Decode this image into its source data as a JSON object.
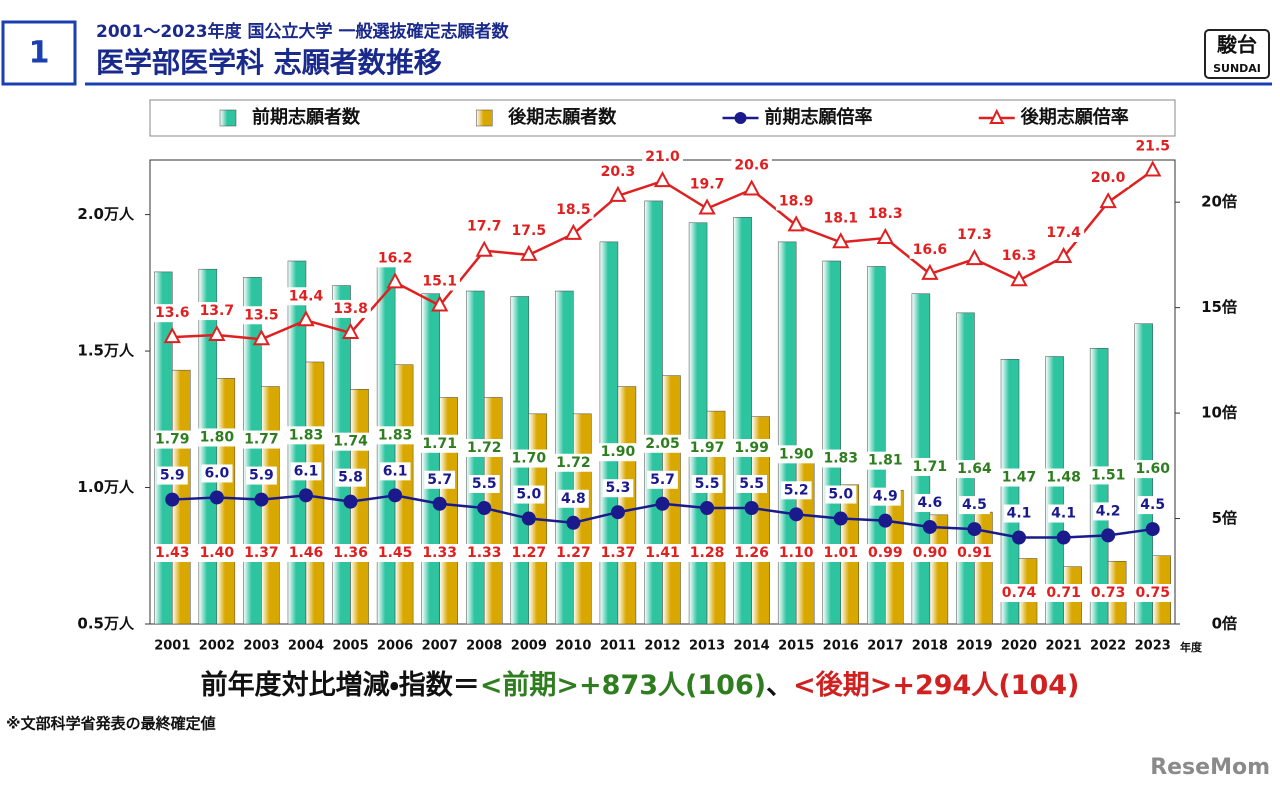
{
  "header": {
    "number": "1",
    "subtitle": "2001～2023年度 国公立大学 一般選抜確定志願者数",
    "title": "医学部医学科 志願者数推移"
  },
  "logo": {
    "kanji": "駿台",
    "latin": "SUNDAI"
  },
  "summary": {
    "lead": "前年度対比増減・指数＝",
    "front": "<前期>+873人(106)",
    "sep": "、",
    "back": "<後期>+294人(104)"
  },
  "note": "※文部科学省発表の最終確定値",
  "watermark": "ReseMom",
  "chart_data": {
    "type": "bar",
    "categories": [
      "2001",
      "2002",
      "2003",
      "2004",
      "2005",
      "2006",
      "2007",
      "2008",
      "2009",
      "2010",
      "2011",
      "2012",
      "2013",
      "2014",
      "2015",
      "2016",
      "2017",
      "2018",
      "2019",
      "2020",
      "2021",
      "2022",
      "2023"
    ],
    "x_unit": "年度",
    "ylim": [
      0.5,
      2.2
    ],
    "yticks": [
      {
        "value": 0.5,
        "label": "0.5万人"
      },
      {
        "value": 1.0,
        "label": "1.0万人"
      },
      {
        "value": 1.5,
        "label": "1.5万人"
      },
      {
        "value": 2.0,
        "label": "2.0万人"
      }
    ],
    "y2lim": [
      0,
      22
    ],
    "y2ticks": [
      {
        "value": 0,
        "label": "0倍"
      },
      {
        "value": 5,
        "label": "5倍"
      },
      {
        "value": 10,
        "label": "10倍"
      },
      {
        "value": 15,
        "label": "15倍"
      },
      {
        "value": 20,
        "label": "20倍"
      }
    ],
    "series": [
      {
        "name": "前期志願者数",
        "type": "bar",
        "color": "#2ec4a0",
        "label_color": "#2e7d1e",
        "values": [
          1.79,
          1.8,
          1.77,
          1.83,
          1.74,
          1.83,
          1.71,
          1.72,
          1.7,
          1.72,
          1.9,
          2.05,
          1.97,
          1.99,
          1.9,
          1.83,
          1.81,
          1.71,
          1.64,
          1.47,
          1.48,
          1.51,
          1.6
        ],
        "value_labels": [
          "1.79",
          "1.80",
          "1.77",
          "1.83",
          "1.74",
          "1.83",
          "1.71",
          "1.72",
          "1.70",
          "1.72",
          "1.90",
          "2.05",
          "1.97",
          "1.99",
          "1.90",
          "1.83",
          "1.81",
          "1.71",
          "1.64",
          "1.47",
          "1.48",
          "1.51",
          "1.60"
        ]
      },
      {
        "name": "後期志願者数",
        "type": "bar",
        "color": "#d9a800",
        "label_color": "#e02020",
        "values": [
          1.43,
          1.4,
          1.37,
          1.46,
          1.36,
          1.45,
          1.33,
          1.33,
          1.27,
          1.27,
          1.37,
          1.41,
          1.28,
          1.26,
          1.1,
          1.01,
          0.99,
          0.9,
          0.91,
          0.74,
          0.71,
          0.73,
          0.75
        ],
        "value_labels": [
          "1.43",
          "1.40",
          "1.37",
          "1.46",
          "1.36",
          "1.45",
          "1.33",
          "1.33",
          "1.27",
          "1.27",
          "1.37",
          "1.41",
          "1.28",
          "1.26",
          "1.10",
          "1.01",
          "0.99",
          "0.90",
          "0.91",
          "0.74",
          "0.71",
          "0.73",
          "0.75"
        ]
      },
      {
        "name": "前期志願倍率",
        "type": "line",
        "axis": "y2",
        "marker": "circle",
        "color": "#1a1a8c",
        "label_color": "#1a1a8c",
        "values": [
          5.9,
          6.0,
          5.9,
          6.1,
          5.8,
          6.1,
          5.7,
          5.5,
          5.0,
          4.8,
          5.3,
          5.7,
          5.5,
          5.5,
          5.2,
          5.0,
          4.9,
          4.6,
          4.5,
          4.1,
          4.1,
          4.2,
          4.5
        ],
        "value_labels": [
          "5.9",
          "6.0",
          "5.9",
          "6.1",
          "5.8",
          "6.1",
          "5.7",
          "5.5",
          "5.0",
          "4.8",
          "5.3",
          "5.7",
          "5.5",
          "5.5",
          "5.2",
          "5.0",
          "4.9",
          "4.6",
          "4.5",
          "4.1",
          "4.1",
          "4.2",
          "4.5"
        ]
      },
      {
        "name": "後期志願倍率",
        "type": "line",
        "axis": "y2",
        "marker": "triangle",
        "color": "#e02020",
        "label_color": "#e02020",
        "values": [
          13.6,
          13.7,
          13.5,
          14.4,
          13.8,
          16.2,
          15.1,
          17.7,
          17.5,
          18.5,
          20.3,
          21.0,
          19.7,
          20.6,
          18.9,
          18.1,
          18.3,
          16.6,
          17.3,
          16.3,
          17.4,
          20.0,
          21.5
        ],
        "value_labels": [
          "13.6",
          "13.7",
          "13.5",
          "14.4",
          "13.8",
          "16.2",
          "15.1",
          "17.7",
          "17.5",
          "18.5",
          "20.3",
          "21.0",
          "19.7",
          "20.6",
          "18.9",
          "18.1",
          "18.3",
          "16.6",
          "17.3",
          "16.3",
          "17.4",
          "20.0",
          "21.5"
        ]
      }
    ]
  }
}
